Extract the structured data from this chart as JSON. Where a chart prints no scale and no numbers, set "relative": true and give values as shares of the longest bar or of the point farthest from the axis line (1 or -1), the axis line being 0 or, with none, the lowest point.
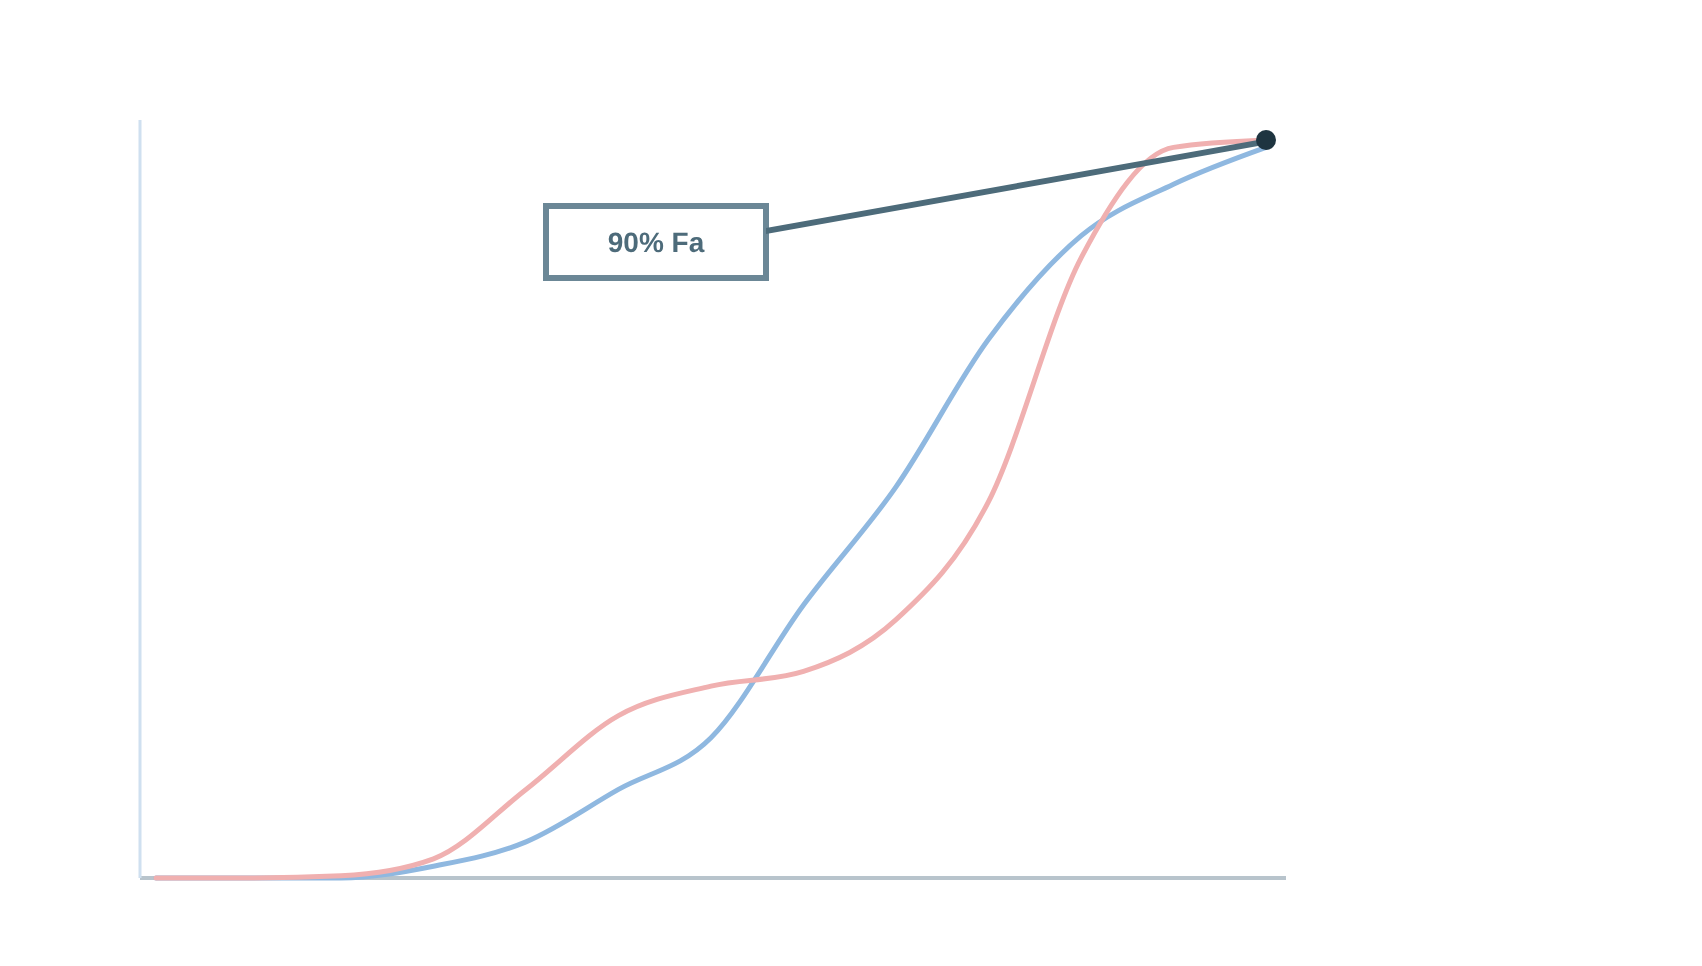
{
  "chart_data": {
    "type": "line",
    "relative": true,
    "categories": [
      null,
      null,
      null,
      null,
      null,
      null,
      null,
      null,
      null,
      null,
      null,
      null,
      null
    ],
    "series": [
      {
        "color": "#8fb8e0",
        "values": [
          0,
          0,
          0,
          0.016,
          0.049,
          0.12,
          0.19,
          0.37,
          0.53,
          0.73,
          0.87,
          0.94,
          0.99
        ]
      },
      {
        "color": "#f0b0b0",
        "values": [
          0,
          0,
          0.003,
          0.026,
          0.12,
          0.22,
          0.26,
          0.28,
          0.35,
          0.51,
          0.84,
          0.99,
          1
        ]
      }
    ],
    "annotations": [
      "90% Fa"
    ],
    "marker": "none",
    "line_style": "solid"
  }
}
